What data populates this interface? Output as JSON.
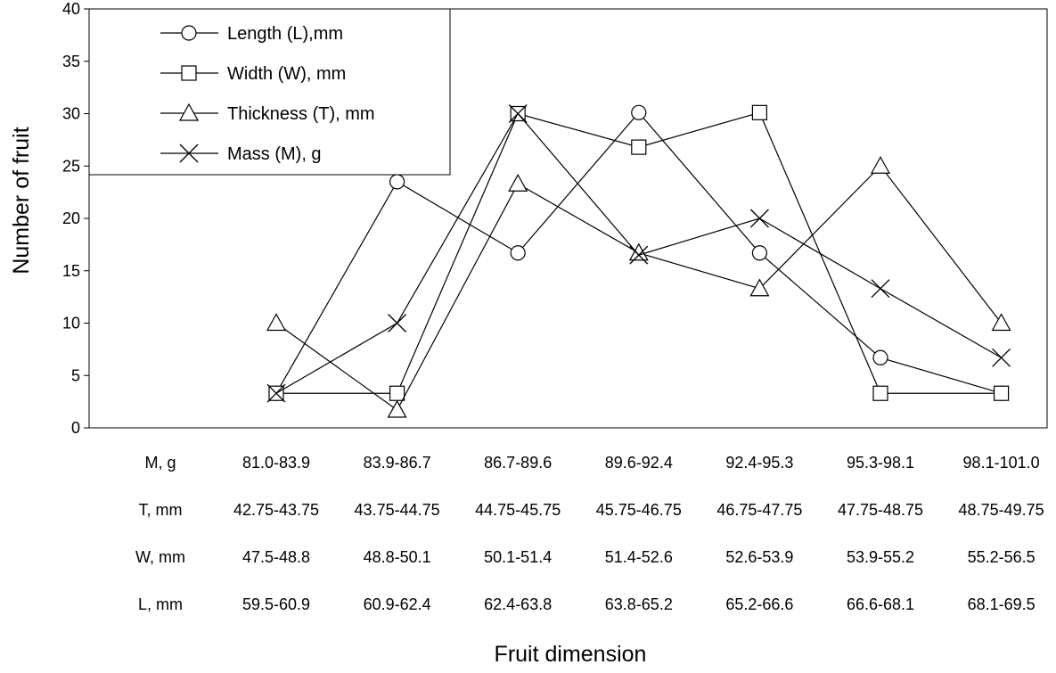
{
  "chart_data": {
    "type": "line",
    "ylabel": "Number of fruit",
    "xlabel": "Fruit dimension",
    "ylim": [
      0,
      40
    ],
    "yticks": [
      "0",
      "5",
      "10",
      "15",
      "20",
      "25",
      "30",
      "35",
      "40"
    ],
    "grid": false,
    "legend_position": "top-left",
    "category_rows": [
      {
        "label": "M, g",
        "values": [
          "81.0-83.9",
          "83.9-86.7",
          "86.7-89.6",
          "89.6-92.4",
          "92.4-95.3",
          "95.3-98.1",
          "98.1-101.0"
        ]
      },
      {
        "label": "T, mm",
        "values": [
          "42.75-43.75",
          "43.75-44.75",
          "44.75-45.75",
          "45.75-46.75",
          "46.75-47.75",
          "47.75-48.75",
          "48.75-49.75"
        ]
      },
      {
        "label": "W, mm",
        "values": [
          "47.5-48.8",
          "48.8-50.1",
          "50.1-51.4",
          "51.4-52.6",
          "52.6-53.9",
          "53.9-55.2",
          "55.2-56.5"
        ]
      },
      {
        "label": "L, mm",
        "values": [
          "59.5-60.9",
          "60.9-62.4",
          "62.4-63.8",
          "63.8-65.2",
          "65.2-66.6",
          "66.6-68.1",
          "68.1-69.5"
        ]
      }
    ],
    "series": [
      {
        "name": "Length (L),mm",
        "marker": "circle",
        "values": [
          3.3,
          23.5,
          16.7,
          30.1,
          16.7,
          6.7,
          3.3
        ]
      },
      {
        "name": "Width (W), mm",
        "marker": "square",
        "values": [
          3.3,
          3.3,
          30.0,
          26.8,
          30.1,
          3.3,
          3.3
        ]
      },
      {
        "name": "Thickness (T), mm",
        "marker": "triangle",
        "values": [
          10.0,
          1.7,
          23.3,
          16.7,
          13.3,
          25.0,
          10.0
        ]
      },
      {
        "name": "Mass (M), g",
        "marker": "x",
        "values": [
          3.3,
          10.0,
          30.0,
          16.5,
          20.0,
          13.3,
          6.7
        ]
      }
    ]
  }
}
